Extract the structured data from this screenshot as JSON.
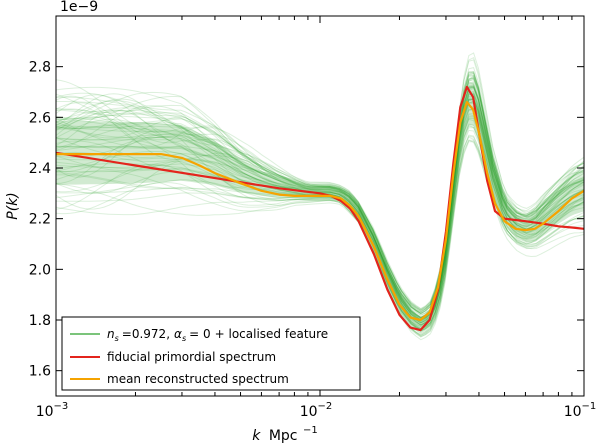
{
  "chart_data": {
    "type": "line",
    "x_scale": "log",
    "xlim": [
      0.001,
      0.1
    ],
    "ylim": [
      1.5e-09,
      3e-09
    ],
    "y_offset_label": "1e−9",
    "x_ticks": [
      {
        "value": 0.001,
        "base": "10",
        "exp": "−3"
      },
      {
        "value": 0.01,
        "base": "10",
        "exp": "−2"
      },
      {
        "value": 0.1,
        "base": "10",
        "exp": "−1"
      }
    ],
    "y_ticks": [
      {
        "value": 1.6e-09,
        "label": "1.6"
      },
      {
        "value": 1.8e-09,
        "label": "1.8"
      },
      {
        "value": 2e-09,
        "label": "2.0"
      },
      {
        "value": 2.2e-09,
        "label": "2.2"
      },
      {
        "value": 2.4e-09,
        "label": "2.4"
      },
      {
        "value": 2.6e-09,
        "label": "2.6"
      },
      {
        "value": 2.8e-09,
        "label": "2.8"
      }
    ],
    "xlabel": {
      "k": "k",
      "unit": "Mpc",
      "exp": "−1"
    },
    "ylabel": "P(k)",
    "legend_position": "lower-left",
    "series": [
      {
        "name": "n_s = 0.972, α_s = 0 + localised feature",
        "legend": {
          "ns": "n",
          "ns_sub": "s",
          "ns_val": "=0.972,",
          "as": "α",
          "as_sub": "s",
          "as_val": "=  0",
          "rest": "+ localised feature"
        },
        "color": "#2ca02c",
        "kind": "band",
        "x": [
          0.001,
          0.0015,
          0.002,
          0.003,
          0.004,
          0.005,
          0.006,
          0.007,
          0.008,
          0.009,
          0.01,
          0.011,
          0.012,
          0.013,
          0.014,
          0.016,
          0.018,
          0.02,
          0.022,
          0.024,
          0.026,
          0.028,
          0.03,
          0.032,
          0.034,
          0.036,
          0.038,
          0.04,
          0.045,
          0.05,
          0.055,
          0.06,
          0.065,
          0.07,
          0.08,
          0.09,
          0.1
        ],
        "y_mean": [
          2.46e-09,
          2.46e-09,
          2.46e-09,
          2.46e-09,
          2.42e-09,
          2.37e-09,
          2.34e-09,
          2.32e-09,
          2.31e-09,
          2.3e-09,
          2.3e-09,
          2.3e-09,
          2.29e-09,
          2.26e-09,
          2.22e-09,
          2.1e-09,
          1.97e-09,
          1.87e-09,
          1.81e-09,
          1.78e-09,
          1.8e-09,
          1.88e-09,
          2.05e-09,
          2.3e-09,
          2.52e-09,
          2.65e-09,
          2.66e-09,
          2.6e-09,
          2.37e-09,
          2.22e-09,
          2.17e-09,
          2.15e-09,
          2.16e-09,
          2.19e-09,
          2.24e-09,
          2.28e-09,
          2.3e-09
        ],
        "spread": [
          2.3e-10,
          2.25e-10,
          2.2e-10,
          2e-10,
          1.6e-10,
          1.2e-10,
          9e-11,
          7e-11,
          5e-11,
          4e-11,
          4e-11,
          4e-11,
          4e-11,
          5e-11,
          5e-11,
          6e-11,
          6e-11,
          6e-11,
          6e-11,
          6e-11,
          6e-11,
          7e-11,
          8e-11,
          1e-10,
          1.2e-10,
          1.5e-10,
          1.6e-10,
          1.5e-10,
          1e-10,
          8e-11,
          8e-11,
          8e-11,
          9e-11,
          1e-10,
          1.1e-10,
          1.2e-10,
          1.3e-10
        ]
      },
      {
        "name": "fiducial primordial spectrum",
        "color": "#e3241c",
        "kind": "line",
        "x": [
          0.001,
          0.002,
          0.004,
          0.007,
          0.01,
          0.011,
          0.012,
          0.013,
          0.014,
          0.016,
          0.018,
          0.02,
          0.022,
          0.024,
          0.026,
          0.028,
          0.03,
          0.032,
          0.034,
          0.036,
          0.038,
          0.04,
          0.043,
          0.046,
          0.05,
          0.06,
          0.07,
          0.08,
          0.09,
          0.1
        ],
        "y": [
          2.46e-09,
          2.41e-09,
          2.36e-09,
          2.32e-09,
          2.3e-09,
          2.29e-09,
          2.27e-09,
          2.24e-09,
          2.19e-09,
          2.06e-09,
          1.92e-09,
          1.82e-09,
          1.77e-09,
          1.76e-09,
          1.8e-09,
          1.92e-09,
          2.15e-09,
          2.42e-09,
          2.64e-09,
          2.72e-09,
          2.68e-09,
          2.54e-09,
          2.35e-09,
          2.23e-09,
          2.2e-09,
          2.19e-09,
          2.18e-09,
          2.17e-09,
          2.165e-09,
          2.16e-09
        ]
      },
      {
        "name": "mean reconstructed spectrum",
        "color": "#f5a300",
        "kind": "line",
        "x": [
          0.001,
          0.0015,
          0.002,
          0.0025,
          0.003,
          0.0035,
          0.004,
          0.005,
          0.006,
          0.007,
          0.008,
          0.009,
          0.01,
          0.011,
          0.012,
          0.013,
          0.014,
          0.016,
          0.018,
          0.02,
          0.022,
          0.024,
          0.026,
          0.028,
          0.03,
          0.032,
          0.034,
          0.036,
          0.038,
          0.04,
          0.043,
          0.046,
          0.05,
          0.055,
          0.06,
          0.065,
          0.07,
          0.08,
          0.09,
          0.1
        ],
        "y": [
          2.455e-09,
          2.455e-09,
          2.455e-09,
          2.455e-09,
          2.44e-09,
          2.41e-09,
          2.38e-09,
          2.34e-09,
          2.31e-09,
          2.295e-09,
          2.29e-09,
          2.29e-09,
          2.29e-09,
          2.29e-09,
          2.28e-09,
          2.25e-09,
          2.21e-09,
          2.09e-09,
          1.96e-09,
          1.86e-09,
          1.81e-09,
          1.8e-09,
          1.83e-09,
          1.93e-09,
          2.12e-09,
          2.38e-09,
          2.58e-09,
          2.66e-09,
          2.63e-09,
          2.54e-09,
          2.38e-09,
          2.26e-09,
          2.19e-09,
          2.16e-09,
          2.155e-09,
          2.16e-09,
          2.18e-09,
          2.23e-09,
          2.28e-09,
          2.31e-09
        ]
      }
    ]
  }
}
